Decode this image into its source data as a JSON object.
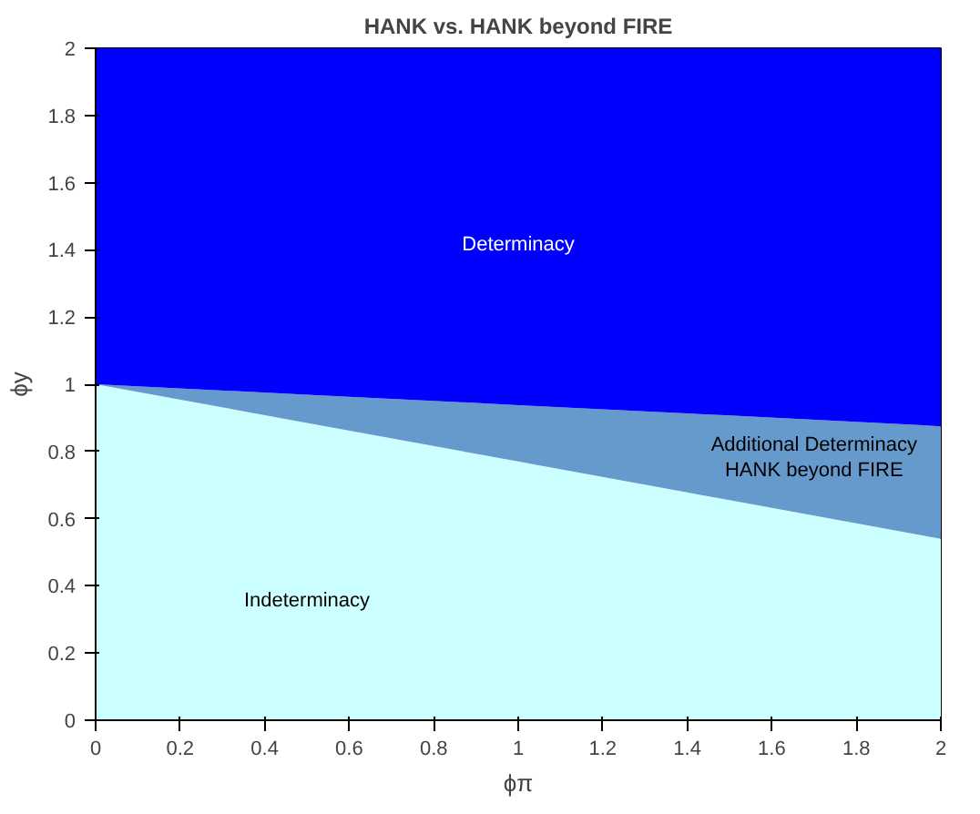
{
  "chart_data": {
    "type": "area",
    "stacked": true,
    "title": "HANK vs. HANK beyond FIRE",
    "xlabel": "ϕπ",
    "ylabel": "ϕy",
    "x": [
      0,
      0.5,
      1,
      1.5,
      2
    ],
    "series": [
      {
        "name": "Indeterminacy",
        "color": "#ccffff",
        "values": [
          1,
          0.885,
          0.77,
          0.655,
          0.54
        ]
      },
      {
        "name": "Additional Determinacy\nHANK beyond FIRE",
        "color": "#6699cc",
        "values": [
          0,
          0.084,
          0.168,
          0.252,
          0.335
        ]
      },
      {
        "name": "Determinacy",
        "color": "#0000ff",
        "values": [
          1,
          1.031,
          1.062,
          1.093,
          1.125
        ]
      }
    ],
    "xlim": [
      0,
      2
    ],
    "ylim": [
      0,
      2
    ],
    "xticks": [
      0,
      0.2,
      0.4,
      0.6,
      0.8,
      1,
      1.2,
      1.4,
      1.6,
      1.8,
      2
    ],
    "yticks": [
      0,
      0.2,
      0.4,
      0.6,
      0.8,
      1,
      1.2,
      1.4,
      1.6,
      1.8,
      2
    ],
    "grid": false
  }
}
